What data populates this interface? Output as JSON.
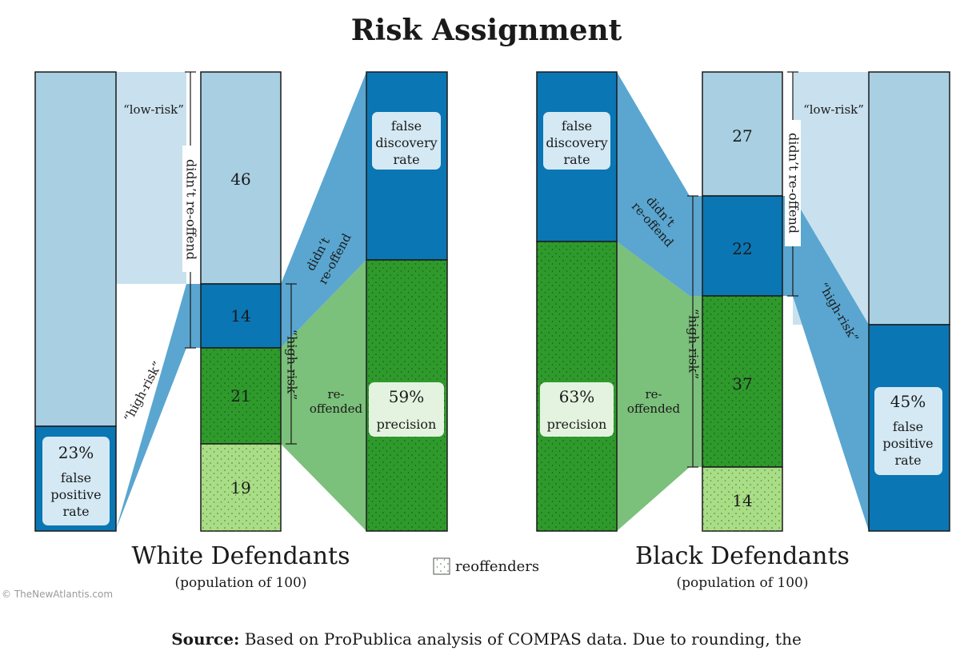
{
  "title": "Risk Assignment",
  "colors": {
    "light_blue": "#a8cfe2",
    "mid_blue": "#5aa6d0",
    "dark_blue": "#0a76b4",
    "dark_green": "#2f9a2c",
    "light_green": "#a9dd86",
    "flow_green": "#7bc07b",
    "label_box": "#d4e9f4"
  },
  "white": {
    "heading": "White Defendants",
    "subheading": "(population of 100)",
    "segments": {
      "didnt_low": "46",
      "didnt_high": "14",
      "reoff_high": "21",
      "reoff_low": "19"
    },
    "fpr": {
      "pct": "23%",
      "line1": "false",
      "line2": "positive",
      "line3": "rate"
    },
    "fdr": {
      "line1": "false",
      "line2": "discovery",
      "line3": "rate"
    },
    "precision": {
      "pct": "59%",
      "label": "precision"
    }
  },
  "black": {
    "heading": "Black Defendants",
    "subheading": "(population of 100)",
    "segments": {
      "didnt_low": "27",
      "didnt_high": "22",
      "reoff_high": "37",
      "reoff_low": "14"
    },
    "fpr": {
      "pct": "45%",
      "line1": "false",
      "line2": "positive",
      "line3": "rate"
    },
    "fdr": {
      "line1": "false",
      "line2": "discovery",
      "line3": "rate"
    },
    "precision": {
      "pct": "63%",
      "label": "precision"
    }
  },
  "labels": {
    "low_risk": "“low-risk”",
    "high_risk": "“high-risk”",
    "didnt_reoffend": "didn’t re-offend",
    "didnt": "didn’t",
    "re_offend": "re-offend",
    "re": "re-",
    "offended": "offended"
  },
  "legend": {
    "label": "reoffenders"
  },
  "watermark": "© TheNewAtlantis.com",
  "source": {
    "bold": "Source:",
    "text": " Based on ProPublica analysis of COMPAS data. Due to rounding, the"
  }
}
